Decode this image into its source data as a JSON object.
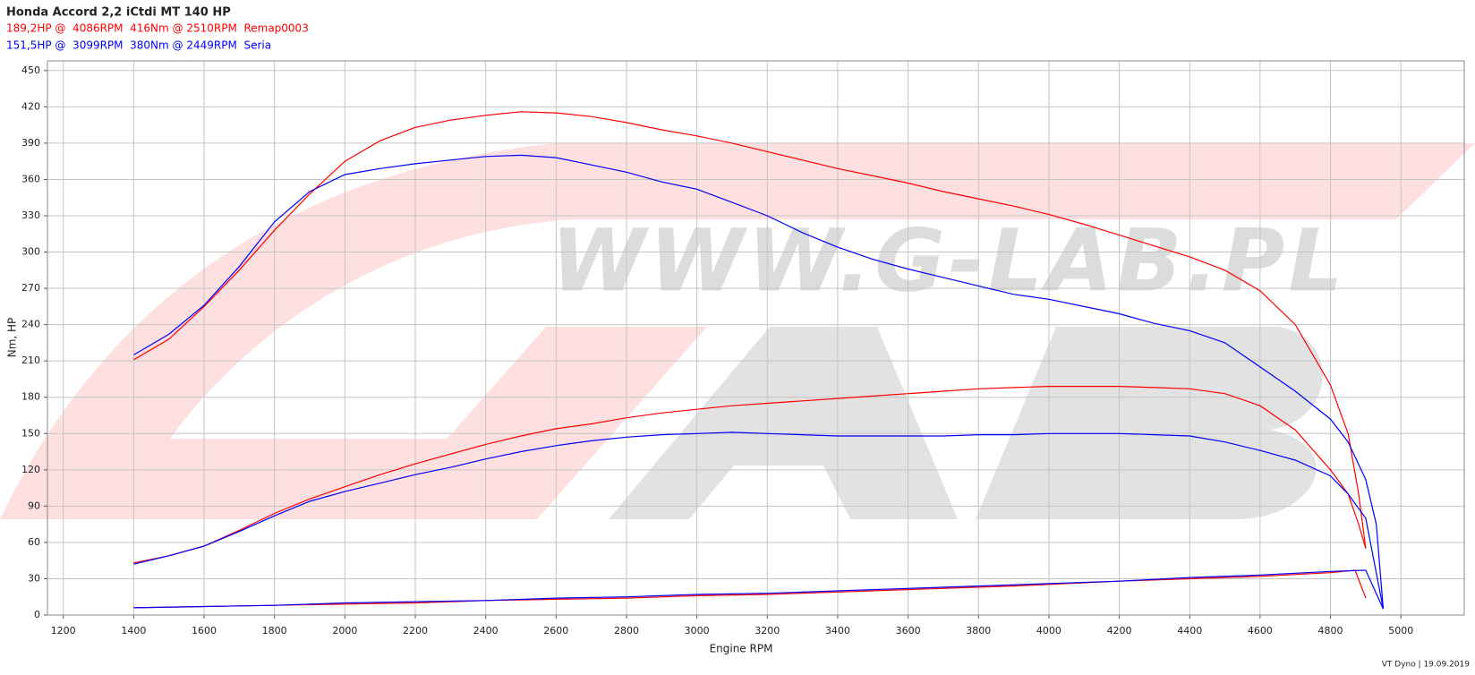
{
  "chart_data": {
    "type": "line",
    "title": "Honda Accord 2,2 iCtdi MT 140 HP",
    "legend": [
      {
        "text": "189,2HP @  4086RPM  416Nm @ 2510RPM  Remap0003",
        "color": "#ff0000"
      },
      {
        "text": "151,5HP @  3099RPM  380Nm @ 2449RPM  Seria",
        "color": "#0000ff"
      }
    ],
    "x_label": "Engine RPM",
    "y_label": "Nm, HP",
    "footer": "VT Dyno | 19.09.2019",
    "watermark": "WWW.G-LAB.PL",
    "xlim": [
      1155,
      5180
    ],
    "ylim": [
      0,
      458
    ],
    "xticks": [
      1200,
      1400,
      1600,
      1800,
      2000,
      2200,
      2400,
      2600,
      2800,
      3000,
      3200,
      3400,
      3600,
      3800,
      4000,
      4200,
      4400,
      4600,
      4800,
      5000
    ],
    "yticks": [
      0,
      30,
      60,
      90,
      120,
      150,
      180,
      210,
      240,
      270,
      300,
      330,
      360,
      390,
      420,
      450
    ],
    "grid": true,
    "series": [
      {
        "color": "#ff0000",
        "x": [
          1400,
          1500,
          1600,
          1700,
          1800,
          1900,
          2000,
          2100,
          2200,
          2300,
          2400,
          2500,
          2600,
          2700,
          2800,
          2900,
          3000,
          3100,
          3200,
          3300,
          3400,
          3500,
          3600,
          3700,
          3800,
          3900,
          4000,
          4100,
          4200,
          4300,
          4400,
          4500,
          4600,
          4700,
          4800,
          4850,
          4880,
          4900
        ],
        "values": [
          211,
          228,
          255,
          285,
          318,
          348,
          375,
          392,
          403,
          409,
          413,
          416,
          415,
          412,
          407,
          401,
          396,
          390,
          383,
          376,
          369,
          363,
          357,
          350,
          344,
          338,
          331,
          323,
          314,
          305,
          296,
          285,
          268,
          240,
          190,
          150,
          100,
          55
        ]
      },
      {
        "color": "#0000ff",
        "x": [
          1400,
          1500,
          1600,
          1700,
          1800,
          1900,
          2000,
          2100,
          2200,
          2300,
          2400,
          2500,
          2600,
          2700,
          2800,
          2900,
          3000,
          3100,
          3200,
          3300,
          3400,
          3500,
          3600,
          3700,
          3800,
          3900,
          4000,
          4100,
          4200,
          4300,
          4400,
          4500,
          4600,
          4700,
          4800,
          4850,
          4900,
          4930,
          4950
        ],
        "values": [
          215,
          232,
          256,
          288,
          325,
          350,
          364,
          369,
          373,
          376,
          379,
          380,
          378,
          372,
          366,
          358,
          352,
          341,
          330,
          316,
          304,
          294,
          286,
          279,
          272,
          265,
          261,
          255,
          249,
          241,
          235,
          225,
          205,
          185,
          162,
          143,
          112,
          75,
          5
        ]
      },
      {
        "color": "#ff0000",
        "x": [
          1400,
          1500,
          1600,
          1700,
          1800,
          1900,
          2000,
          2100,
          2200,
          2300,
          2400,
          2500,
          2600,
          2700,
          2800,
          2900,
          3000,
          3100,
          3200,
          3300,
          3400,
          3500,
          3600,
          3700,
          3800,
          3900,
          4000,
          4100,
          4200,
          4300,
          4400,
          4500,
          4600,
          4700,
          4800,
          4850,
          4880,
          4900
        ],
        "values": [
          43,
          49,
          57,
          70,
          84,
          96,
          106,
          116,
          125,
          133,
          141,
          148,
          154,
          158,
          163,
          167,
          170,
          173,
          175,
          177,
          179,
          181,
          183,
          185,
          187,
          188,
          189,
          189,
          189,
          188,
          187,
          183,
          173,
          153,
          120,
          100,
          75,
          55
        ]
      },
      {
        "color": "#0000ff",
        "x": [
          1400,
          1500,
          1600,
          1700,
          1800,
          1900,
          2000,
          2100,
          2200,
          2300,
          2400,
          2500,
          2600,
          2700,
          2800,
          2900,
          3000,
          3100,
          3200,
          3300,
          3400,
          3500,
          3600,
          3700,
          3800,
          3900,
          4000,
          4100,
          4200,
          4300,
          4400,
          4500,
          4600,
          4700,
          4800,
          4850,
          4900,
          4950
        ],
        "values": [
          42,
          49,
          57,
          69,
          82,
          94,
          102,
          109,
          116,
          122,
          129,
          135,
          140,
          144,
          147,
          149,
          150,
          151,
          150,
          149,
          148,
          148,
          148,
          148,
          149,
          149,
          150,
          150,
          150,
          149,
          148,
          143,
          136,
          128,
          115,
          100,
          80,
          5
        ]
      },
      {
        "color": "#ff0000",
        "x": [
          1400,
          1600,
          1800,
          2000,
          2200,
          2400,
          2600,
          2800,
          3000,
          3200,
          3400,
          3600,
          3800,
          3900,
          4200,
          4400,
          4600,
          4800,
          4870,
          4900
        ],
        "values": [
          6,
          7,
          8,
          9,
          10,
          12,
          13,
          14,
          16,
          17,
          19,
          21,
          23,
          24,
          28,
          30,
          32,
          35,
          37,
          14
        ]
      },
      {
        "color": "#0000ff",
        "x": [
          1400,
          1600,
          1800,
          2000,
          2200,
          2400,
          2600,
          2800,
          3000,
          3200,
          3400,
          3600,
          3800,
          4000,
          4200,
          4400,
          4600,
          4800,
          4900,
          4950
        ],
        "values": [
          6,
          7,
          8,
          10,
          11,
          12,
          14,
          15,
          17,
          18,
          20,
          22,
          24,
          26,
          28,
          31,
          33,
          36,
          37,
          5
        ]
      }
    ]
  }
}
